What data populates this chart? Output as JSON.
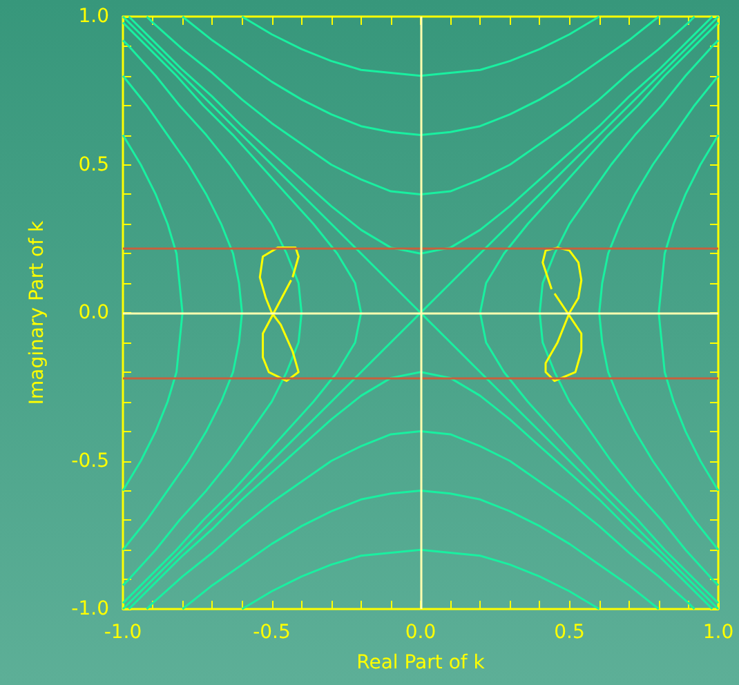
{
  "chart_data": {
    "type": "line",
    "xlabel": "Real Part of k",
    "ylabel": "Imaginary Part of k",
    "xlim": [
      -1,
      1
    ],
    "ylim": [
      -1,
      1
    ],
    "xticks": [
      {
        "value": -1,
        "label": "-1.0"
      },
      {
        "value": -0.9,
        "label": null
      },
      {
        "value": -0.8,
        "label": null
      },
      {
        "value": -0.7,
        "label": null
      },
      {
        "value": -0.6,
        "label": null
      },
      {
        "value": -0.5,
        "label": "-0.5"
      },
      {
        "value": -0.4,
        "label": null
      },
      {
        "value": -0.3,
        "label": null
      },
      {
        "value": -0.2,
        "label": null
      },
      {
        "value": -0.1,
        "label": null
      },
      {
        "value": 0,
        "label": "0.0"
      },
      {
        "value": 0.1,
        "label": null
      },
      {
        "value": 0.2,
        "label": null
      },
      {
        "value": 0.3,
        "label": null
      },
      {
        "value": 0.4,
        "label": null
      },
      {
        "value": 0.5,
        "label": "0.5"
      },
      {
        "value": 0.6,
        "label": null
      },
      {
        "value": 0.7,
        "label": null
      },
      {
        "value": 0.8,
        "label": null
      },
      {
        "value": 0.9,
        "label": null
      },
      {
        "value": 1,
        "label": "1.0"
      }
    ],
    "yticks": [
      {
        "value": -1,
        "label": "-1.0"
      },
      {
        "value": -0.9,
        "label": null
      },
      {
        "value": -0.8,
        "label": null
      },
      {
        "value": -0.7,
        "label": null
      },
      {
        "value": -0.6,
        "label": null
      },
      {
        "value": -0.5,
        "label": "-0.5"
      },
      {
        "value": -0.4,
        "label": null
      },
      {
        "value": -0.3,
        "label": null
      },
      {
        "value": -0.2,
        "label": null
      },
      {
        "value": -0.1,
        "label": null
      },
      {
        "value": 0,
        "label": "0.0"
      },
      {
        "value": 0.1,
        "label": null
      },
      {
        "value": 0.2,
        "label": null
      },
      {
        "value": 0.3,
        "label": null
      },
      {
        "value": 0.4,
        "label": null
      },
      {
        "value": 0.5,
        "label": "0.5"
      },
      {
        "value": 0.6,
        "label": null
      },
      {
        "value": 0.7,
        "label": null
      },
      {
        "value": 0.8,
        "label": null
      },
      {
        "value": 0.9,
        "label": null
      },
      {
        "value": 1,
        "label": "1.0"
      }
    ],
    "marker": "none",
    "line_style": "solid",
    "grid": false,
    "ref_lines": [
      {
        "axis": "y",
        "value": 0.22,
        "color": "#c8603c"
      },
      {
        "axis": "y",
        "value": -0.22,
        "color": "#c8603c"
      },
      {
        "axis": "x",
        "value": 0,
        "color": "#ffffb0"
      },
      {
        "axis": "y",
        "value": 0,
        "color": "#ffffb0"
      }
    ],
    "series": [
      {
        "color": "#19f0a0",
        "x": [
          -0.98,
          -0.9,
          -0.8,
          -0.7,
          -0.6,
          -0.5,
          -0.4,
          -0.3,
          -0.2,
          -0.1,
          0,
          0.1,
          0.2,
          0.3,
          0.4,
          0.5,
          0.6,
          0.7,
          0.8,
          0.9,
          0.98
        ],
        "values": [
          1,
          0.92,
          0.82,
          0.73,
          0.63,
          0.54,
          0.45,
          0.36,
          0.28,
          0.22,
          0.2,
          0.22,
          0.28,
          0.36,
          0.45,
          0.54,
          0.63,
          0.73,
          0.82,
          0.92,
          1
        ]
      },
      {
        "color": "#19f0a0",
        "x": [
          -0.98,
          -0.9,
          -0.8,
          -0.7,
          -0.6,
          -0.5,
          -0.4,
          -0.3,
          -0.2,
          -0.1,
          0,
          0.1,
          0.2,
          0.3,
          0.4,
          0.5,
          0.6,
          0.7,
          0.8,
          0.9,
          0.98
        ],
        "values": [
          -1,
          -0.92,
          -0.82,
          -0.73,
          -0.63,
          -0.54,
          -0.45,
          -0.36,
          -0.28,
          -0.22,
          -0.2,
          -0.22,
          -0.28,
          -0.36,
          -0.45,
          -0.54,
          -0.63,
          -0.73,
          -0.82,
          -0.92,
          -1
        ]
      },
      {
        "color": "#19f0a0",
        "x": [
          1,
          0.92,
          0.82,
          0.73,
          0.63,
          0.54,
          0.45,
          0.36,
          0.28,
          0.22,
          0.2,
          0.22,
          0.28,
          0.36,
          0.45,
          0.54,
          0.63,
          0.73,
          0.82,
          0.92,
          1
        ],
        "values": [
          -0.98,
          -0.9,
          -0.8,
          -0.7,
          -0.6,
          -0.5,
          -0.4,
          -0.3,
          -0.2,
          -0.1,
          0,
          0.1,
          0.2,
          0.3,
          0.4,
          0.5,
          0.6,
          0.7,
          0.8,
          0.9,
          0.98
        ]
      },
      {
        "color": "#19f0a0",
        "x": [
          -1,
          -0.92,
          -0.82,
          -0.73,
          -0.63,
          -0.54,
          -0.45,
          -0.36,
          -0.28,
          -0.22,
          -0.2,
          -0.22,
          -0.28,
          -0.36,
          -0.45,
          -0.54,
          -0.63,
          -0.73,
          -0.82,
          -0.92,
          -1
        ],
        "values": [
          -0.98,
          -0.9,
          -0.8,
          -0.7,
          -0.6,
          -0.5,
          -0.4,
          -0.3,
          -0.2,
          -0.1,
          0,
          0.1,
          0.2,
          0.3,
          0.4,
          0.5,
          0.6,
          0.7,
          0.8,
          0.9,
          0.98
        ]
      },
      {
        "color": "#19f0a0",
        "x": [
          -0.92,
          -0.9,
          -0.8,
          -0.7,
          -0.6,
          -0.5,
          -0.4,
          -0.3,
          -0.2,
          -0.1,
          0,
          0.1,
          0.2,
          0.3,
          0.4,
          0.5,
          0.6,
          0.7,
          0.8,
          0.9,
          0.92
        ],
        "values": [
          1,
          0.98,
          0.89,
          0.81,
          0.72,
          0.64,
          0.57,
          0.5,
          0.45,
          0.41,
          0.4,
          0.41,
          0.45,
          0.5,
          0.57,
          0.64,
          0.72,
          0.81,
          0.89,
          0.98,
          1
        ]
      },
      {
        "color": "#19f0a0",
        "x": [
          -0.92,
          -0.9,
          -0.8,
          -0.7,
          -0.6,
          -0.5,
          -0.4,
          -0.3,
          -0.2,
          -0.1,
          0,
          0.1,
          0.2,
          0.3,
          0.4,
          0.5,
          0.6,
          0.7,
          0.8,
          0.9,
          0.92
        ],
        "values": [
          -1,
          -0.98,
          -0.89,
          -0.81,
          -0.72,
          -0.64,
          -0.57,
          -0.5,
          -0.45,
          -0.41,
          -0.4,
          -0.41,
          -0.45,
          -0.5,
          -0.57,
          -0.64,
          -0.72,
          -0.81,
          -0.89,
          -0.98,
          -1
        ]
      },
      {
        "color": "#19f0a0",
        "x": [
          1,
          0.98,
          0.89,
          0.81,
          0.72,
          0.64,
          0.57,
          0.5,
          0.45,
          0.41,
          0.4,
          0.41,
          0.45,
          0.5,
          0.57,
          0.64,
          0.72,
          0.81,
          0.89,
          0.98,
          1
        ],
        "values": [
          -0.92,
          -0.9,
          -0.8,
          -0.7,
          -0.6,
          -0.5,
          -0.4,
          -0.3,
          -0.2,
          -0.1,
          0,
          0.1,
          0.2,
          0.3,
          0.4,
          0.5,
          0.6,
          0.7,
          0.8,
          0.9,
          0.92
        ]
      },
      {
        "color": "#19f0a0",
        "x": [
          -1,
          -0.98,
          -0.89,
          -0.81,
          -0.72,
          -0.64,
          -0.57,
          -0.5,
          -0.45,
          -0.41,
          -0.4,
          -0.41,
          -0.45,
          -0.5,
          -0.57,
          -0.64,
          -0.72,
          -0.81,
          -0.89,
          -0.98,
          -1
        ],
        "values": [
          -0.92,
          -0.9,
          -0.8,
          -0.7,
          -0.6,
          -0.5,
          -0.4,
          -0.3,
          -0.2,
          -0.1,
          0,
          0.1,
          0.2,
          0.3,
          0.4,
          0.5,
          0.6,
          0.7,
          0.8,
          0.9,
          0.92
        ]
      },
      {
        "color": "#19f0a0",
        "x": [
          -0.8,
          -0.7,
          -0.6,
          -0.5,
          -0.4,
          -0.3,
          -0.2,
          -0.1,
          0,
          0.1,
          0.2,
          0.3,
          0.4,
          0.5,
          0.6,
          0.7,
          0.8
        ],
        "values": [
          1,
          0.92,
          0.85,
          0.78,
          0.72,
          0.67,
          0.63,
          0.61,
          0.6,
          0.61,
          0.63,
          0.67,
          0.72,
          0.78,
          0.85,
          0.92,
          1
        ]
      },
      {
        "color": "#19f0a0",
        "x": [
          -0.8,
          -0.7,
          -0.6,
          -0.5,
          -0.4,
          -0.3,
          -0.2,
          -0.1,
          0,
          0.1,
          0.2,
          0.3,
          0.4,
          0.5,
          0.6,
          0.7,
          0.8
        ],
        "values": [
          -1,
          -0.92,
          -0.85,
          -0.78,
          -0.72,
          -0.67,
          -0.63,
          -0.61,
          -0.6,
          -0.61,
          -0.63,
          -0.67,
          -0.72,
          -0.78,
          -0.85,
          -0.92,
          -1
        ]
      },
      {
        "color": "#19f0a0",
        "x": [
          1,
          0.92,
          0.85,
          0.78,
          0.72,
          0.67,
          0.63,
          0.61,
          0.6,
          0.61,
          0.63,
          0.67,
          0.72,
          0.78,
          0.85,
          0.92,
          1
        ],
        "values": [
          -0.8,
          -0.7,
          -0.6,
          -0.5,
          -0.4,
          -0.3,
          -0.2,
          -0.1,
          0,
          0.1,
          0.2,
          0.3,
          0.4,
          0.5,
          0.6,
          0.7,
          0.8
        ]
      },
      {
        "color": "#19f0a0",
        "x": [
          -1,
          -0.92,
          -0.85,
          -0.78,
          -0.72,
          -0.67,
          -0.63,
          -0.61,
          -0.6,
          -0.61,
          -0.63,
          -0.67,
          -0.72,
          -0.78,
          -0.85,
          -0.92,
          -1
        ],
        "values": [
          -0.8,
          -0.7,
          -0.6,
          -0.5,
          -0.4,
          -0.3,
          -0.2,
          -0.1,
          0,
          0.1,
          0.2,
          0.3,
          0.4,
          0.5,
          0.6,
          0.7,
          0.8
        ]
      },
      {
        "color": "#19f0a0",
        "x": [
          -0.6,
          -0.5,
          -0.4,
          -0.3,
          -0.2,
          -0.1,
          0,
          0.1,
          0.2,
          0.3,
          0.4,
          0.5,
          0.6
        ],
        "values": [
          1,
          0.94,
          0.89,
          0.85,
          0.82,
          0.81,
          0.8,
          0.81,
          0.82,
          0.85,
          0.89,
          0.94,
          1
        ]
      },
      {
        "color": "#19f0a0",
        "x": [
          -0.6,
          -0.5,
          -0.4,
          -0.3,
          -0.2,
          -0.1,
          0,
          0.1,
          0.2,
          0.3,
          0.4,
          0.5,
          0.6
        ],
        "values": [
          -1,
          -0.94,
          -0.89,
          -0.85,
          -0.82,
          -0.81,
          -0.8,
          -0.81,
          -0.82,
          -0.85,
          -0.89,
          -0.94,
          -1
        ]
      },
      {
        "color": "#19f0a0",
        "x": [
          1,
          0.94,
          0.89,
          0.85,
          0.82,
          0.81,
          0.8,
          0.81,
          0.82,
          0.85,
          0.89,
          0.94,
          1
        ],
        "values": [
          -0.6,
          -0.5,
          -0.4,
          -0.3,
          -0.2,
          -0.1,
          0,
          0.1,
          0.2,
          0.3,
          0.4,
          0.5,
          0.6
        ]
      },
      {
        "color": "#19f0a0",
        "x": [
          -1,
          -0.94,
          -0.89,
          -0.85,
          -0.82,
          -0.81,
          -0.8,
          -0.81,
          -0.82,
          -0.85,
          -0.89,
          -0.94,
          -1
        ],
        "values": [
          -0.6,
          -0.5,
          -0.4,
          -0.3,
          -0.2,
          -0.1,
          0,
          0.1,
          0.2,
          0.3,
          0.4,
          0.5,
          0.6
        ]
      },
      {
        "color": "#19f0a0",
        "x": [
          -1,
          0,
          1
        ],
        "values": [
          -1,
          0,
          1
        ]
      },
      {
        "color": "#19f0a0",
        "x": [
          -1,
          0,
          1
        ],
        "values": [
          1,
          0,
          -1
        ]
      },
      {
        "color": "#ffff00",
        "x": [
          0.44,
          0.41,
          0.42,
          0.46,
          0.5,
          0.53,
          0.54,
          0.53,
          0.5,
          0.46,
          0.42,
          0.42,
          0.45,
          0.52,
          0.54,
          0.54,
          0.45
        ],
        "values": [
          0.08,
          0.17,
          0.21,
          0.22,
          0.21,
          0.17,
          0.11,
          0.05,
          0,
          -0.1,
          -0.17,
          -0.2,
          -0.23,
          -0.2,
          -0.13,
          -0.07,
          0.065
        ]
      },
      {
        "color": "#ffff00",
        "x": [
          -0.43,
          -0.41,
          -0.42,
          -0.48,
          -0.53,
          -0.54,
          -0.52,
          -0.5,
          -0.47,
          -0.43,
          -0.41,
          -0.45,
          -0.51,
          -0.53,
          -0.53,
          -0.435
        ],
        "values": [
          0.12,
          0.19,
          0.22,
          0.22,
          0.19,
          0.12,
          0.05,
          0,
          -0.04,
          -0.13,
          -0.2,
          -0.23,
          -0.2,
          -0.15,
          -0.07,
          0.11
        ]
      }
    ]
  }
}
